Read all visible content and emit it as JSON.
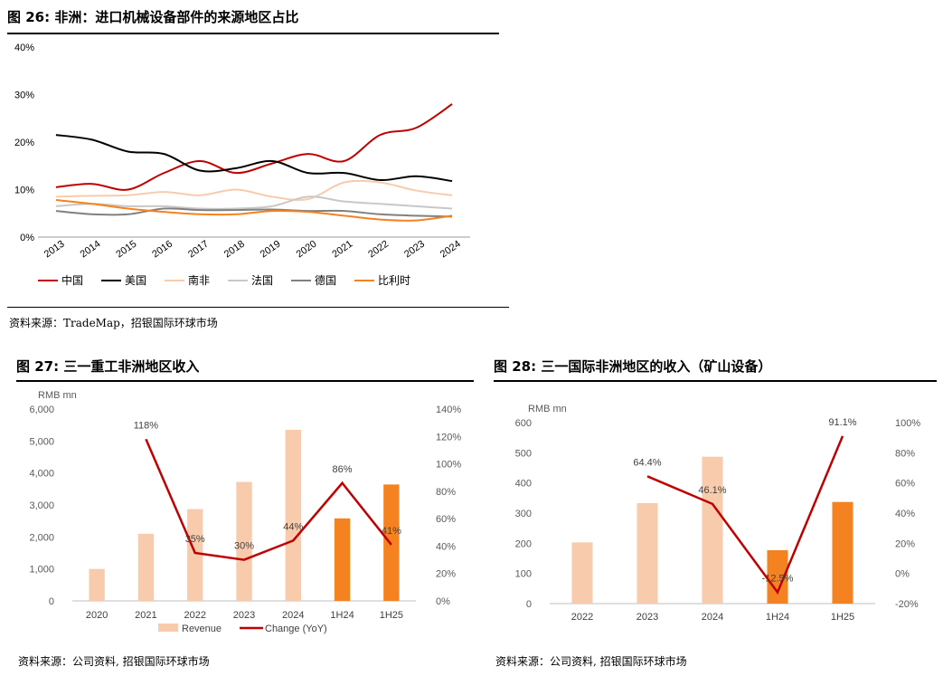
{
  "fig26": {
    "title": "图 26: 非洲：进口机械设备部件的来源地区占比",
    "source": "资料来源：TradeMap，招银国际环球市场"
  },
  "fig27": {
    "title": "图 27: 三一重工非洲地区收入",
    "source": "资料来源：公司资料, 招银国际环球市场"
  },
  "fig28": {
    "title": "图 28: 三一国际非洲地区的收入（矿山设备）",
    "source": "资料来源：公司资料, 招银国际环球市场"
  },
  "colors": {
    "red": "#c00000",
    "black": "#000000",
    "peach": "#f8cbad",
    "lightgray": "#c8c8c8",
    "gray": "#808080",
    "orange": "#f58220",
    "barLight": "#f8cbad",
    "barDark": "#f58220"
  },
  "chart_data": [
    {
      "type": "line",
      "x": [
        "2013",
        "2014",
        "2015",
        "2016",
        "2017",
        "2018",
        "2019",
        "2020",
        "2021",
        "2022",
        "2023",
        "2024"
      ],
      "ylim": [
        0,
        40
      ],
      "yticks": [
        "0%",
        "10%",
        "20%",
        "30%",
        "40%"
      ],
      "grid": false,
      "legend": "bottom",
      "series": [
        {
          "name": "中国",
          "color": "#c00000",
          "values": [
            10.5,
            11.2,
            10,
            13.5,
            16,
            13.5,
            15.5,
            17.5,
            16,
            21.5,
            23,
            28
          ]
        },
        {
          "name": "美国",
          "color": "#000000",
          "values": [
            21.5,
            20.5,
            18,
            17.5,
            14,
            14.5,
            16,
            13.5,
            13.5,
            12,
            12.8,
            11.8
          ]
        },
        {
          "name": "南非",
          "color": "#f8cbad",
          "values": [
            8.5,
            8.7,
            8.8,
            9.5,
            8.8,
            10,
            8.5,
            8,
            11.5,
            11.5,
            9.8,
            8.8
          ]
        },
        {
          "name": "法国",
          "color": "#c8c8c8",
          "values": [
            6.5,
            7,
            6.5,
            6.5,
            6,
            6,
            6.5,
            8.5,
            7.5,
            7,
            6.5,
            6
          ]
        },
        {
          "name": "德国",
          "color": "#808080",
          "values": [
            5.5,
            4.8,
            4.8,
            6,
            5.7,
            5.7,
            5.8,
            5.5,
            5.5,
            4.8,
            4.5,
            4.3
          ]
        },
        {
          "name": "比利时",
          "color": "#f58220",
          "values": [
            7.8,
            7,
            6,
            5.3,
            4.8,
            4.8,
            5.5,
            5.3,
            4.5,
            3.7,
            3.5,
            4.5
          ]
        }
      ]
    },
    {
      "type": "bar",
      "categories": [
        "2020",
        "2021",
        "2022",
        "2023",
        "2024",
        "1H24",
        "1H25"
      ],
      "yunit_label": "RMB mn",
      "ylim": [
        0,
        6000
      ],
      "yticks": [
        "0",
        "1,000",
        "2,000",
        "3,000",
        "4,000",
        "5,000",
        "6,000"
      ],
      "y2lim": [
        0,
        140
      ],
      "y2ticks": [
        "0%",
        "20%",
        "40%",
        "60%",
        "80%",
        "100%",
        "120%",
        "140%"
      ],
      "series": [
        {
          "name": "Revenue",
          "type": "bar",
          "values": [
            1000,
            2100,
            2870,
            3720,
            5350,
            2580,
            3640
          ]
        },
        {
          "name": "Change (YoY)",
          "type": "line",
          "axis": "right",
          "values": [
            null,
            118,
            35,
            30,
            44,
            86,
            41
          ],
          "labels": [
            "",
            "118%",
            "35%",
            "30%",
            "44%",
            "86%",
            "41%"
          ]
        }
      ],
      "highlight_categories": [
        "1H24",
        "1H25"
      ],
      "legend": "bottom"
    },
    {
      "type": "bar",
      "categories": [
        "2022",
        "2023",
        "2024",
        "1H24",
        "1H25"
      ],
      "yunit_label": "RMB mn",
      "ylim": [
        0,
        600
      ],
      "yticks": [
        "0",
        "100",
        "200",
        "300",
        "400",
        "500",
        "600"
      ],
      "y2lim": [
        -20,
        100
      ],
      "y2ticks": [
        "-20%",
        "0%",
        "20%",
        "40%",
        "60%",
        "80%",
        "100%"
      ],
      "series": [
        {
          "name": "Revenue",
          "type": "bar",
          "values": [
            203,
            333,
            487,
            177,
            337
          ]
        },
        {
          "name": "Change (YoY)",
          "type": "line",
          "axis": "right",
          "values": [
            null,
            64.4,
            46.1,
            -12.5,
            91.1
          ],
          "labels": [
            "",
            "64.4%",
            "46.1%",
            "-12.5%",
            "91.1%"
          ]
        }
      ],
      "highlight_categories": [
        "1H24",
        "1H25"
      ]
    }
  ]
}
